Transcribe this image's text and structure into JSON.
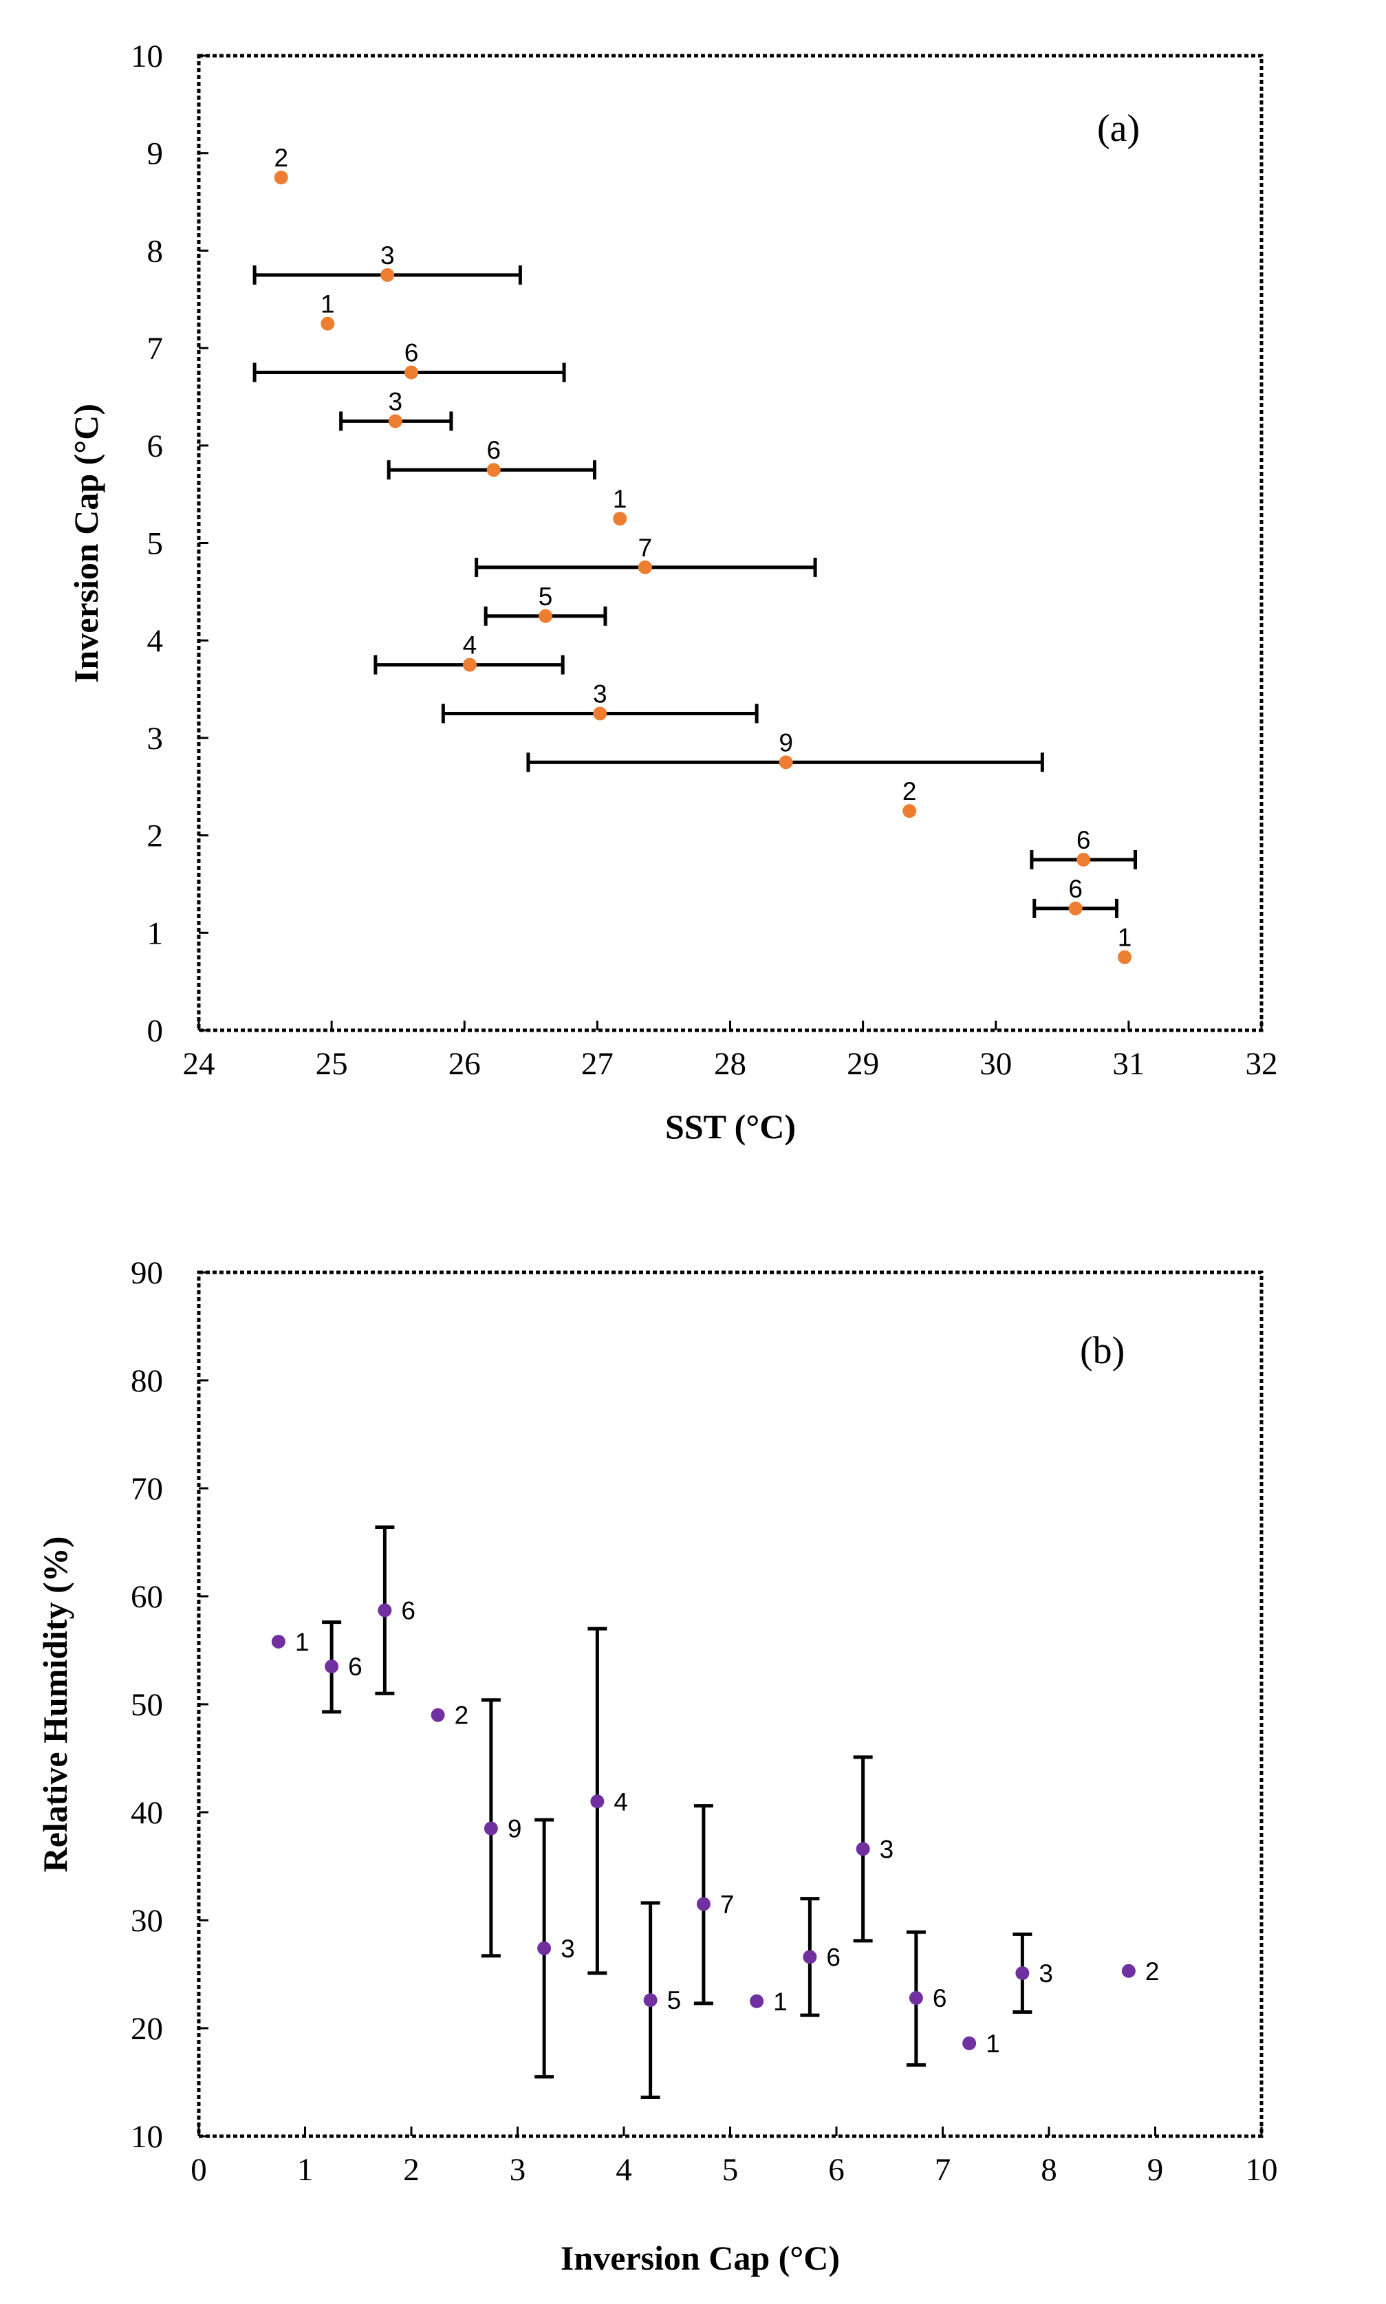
{
  "colors": {
    "panel_a_marker": "#ED7D31",
    "panel_b_marker": "#7030A0",
    "axis": "#000000",
    "error_bar": "#000000"
  },
  "chart_data": [
    {
      "type": "scatter",
      "panel_label": "(a)",
      "xlabel": "SST (°C)",
      "ylabel": "Inversion Cap (°C)",
      "xlim": [
        24,
        32
      ],
      "ylim": [
        0,
        10
      ],
      "xticks": [
        "24",
        "25",
        "26",
        "27",
        "28",
        "29",
        "30",
        "31",
        "32"
      ],
      "yticks": [
        "0",
        "1",
        "2",
        "3",
        "4",
        "5",
        "6",
        "7",
        "8",
        "9",
        "10"
      ],
      "grid": false,
      "error_bars": "horizontal",
      "points": [
        {
          "x": 24.62,
          "y": 8.75,
          "label": "2"
        },
        {
          "x": 25.42,
          "y": 7.75,
          "label": "3",
          "err_low": 24.42,
          "err_high": 26.42
        },
        {
          "x": 24.97,
          "y": 7.25,
          "label": "1"
        },
        {
          "x": 25.6,
          "y": 6.75,
          "label": "6",
          "err_low": 24.42,
          "err_high": 26.75
        },
        {
          "x": 25.48,
          "y": 6.25,
          "label": "3",
          "err_low": 25.07,
          "err_high": 25.9
        },
        {
          "x": 26.22,
          "y": 5.75,
          "label": "6",
          "err_low": 25.43,
          "err_high": 26.98
        },
        {
          "x": 27.17,
          "y": 5.25,
          "label": "1"
        },
        {
          "x": 27.36,
          "y": 4.75,
          "label": "7",
          "err_low": 26.09,
          "err_high": 28.64
        },
        {
          "x": 26.61,
          "y": 4.25,
          "label": "5",
          "err_low": 26.16,
          "err_high": 27.06
        },
        {
          "x": 26.04,
          "y": 3.75,
          "label": "4",
          "err_low": 25.33,
          "err_high": 26.74
        },
        {
          "x": 27.02,
          "y": 3.25,
          "label": "3",
          "err_low": 25.84,
          "err_high": 28.2
        },
        {
          "x": 28.42,
          "y": 2.75,
          "label": "9",
          "err_low": 26.48,
          "err_high": 30.35
        },
        {
          "x": 29.35,
          "y": 2.25,
          "label": "2"
        },
        {
          "x": 30.66,
          "y": 1.75,
          "label": "6",
          "err_low": 30.27,
          "err_high": 31.05
        },
        {
          "x": 30.6,
          "y": 1.25,
          "label": "6",
          "err_low": 30.29,
          "err_high": 30.91
        },
        {
          "x": 30.97,
          "y": 0.75,
          "label": "1"
        }
      ]
    },
    {
      "type": "scatter",
      "panel_label": "(b)",
      "xlabel": "Inversion Cap (°C)",
      "ylabel": "Relative Humidity (%)",
      "xlim": [
        0,
        10
      ],
      "ylim": [
        10,
        90
      ],
      "xticks": [
        "0",
        "1",
        "2",
        "3",
        "4",
        "5",
        "6",
        "7",
        "8",
        "9",
        "10"
      ],
      "yticks": [
        "10",
        "20",
        "30",
        "40",
        "50",
        "60",
        "70",
        "80",
        "90"
      ],
      "grid": false,
      "error_bars": "vertical",
      "points": [
        {
          "x": 0.75,
          "y": 55.8,
          "label": "1"
        },
        {
          "x": 1.25,
          "y": 53.5,
          "label": "6",
          "err_low": 49.3,
          "err_high": 57.6
        },
        {
          "x": 1.75,
          "y": 58.7,
          "label": "6",
          "err_low": 51.0,
          "err_high": 66.4
        },
        {
          "x": 2.25,
          "y": 49.0,
          "label": "2"
        },
        {
          "x": 2.75,
          "y": 38.5,
          "label": "9",
          "err_low": 26.7,
          "err_high": 50.4
        },
        {
          "x": 3.25,
          "y": 27.4,
          "label": "3",
          "err_low": 15.5,
          "err_high": 39.3
        },
        {
          "x": 3.75,
          "y": 41.0,
          "label": "4",
          "err_low": 25.1,
          "err_high": 57.0
        },
        {
          "x": 4.25,
          "y": 22.6,
          "label": "5",
          "err_low": 13.6,
          "err_high": 31.6
        },
        {
          "x": 4.75,
          "y": 31.5,
          "label": "7",
          "err_low": 22.3,
          "err_high": 40.6
        },
        {
          "x": 5.25,
          "y": 22.5,
          "label": "1"
        },
        {
          "x": 5.75,
          "y": 26.6,
          "label": "6",
          "err_low": 21.2,
          "err_high": 32.0
        },
        {
          "x": 6.25,
          "y": 36.6,
          "label": "3",
          "err_low": 28.1,
          "err_high": 45.1
        },
        {
          "x": 6.75,
          "y": 22.8,
          "label": "6",
          "err_low": 16.6,
          "err_high": 28.9
        },
        {
          "x": 7.25,
          "y": 18.6,
          "label": "1"
        },
        {
          "x": 7.75,
          "y": 25.1,
          "label": "3",
          "err_low": 21.5,
          "err_high": 28.7
        },
        {
          "x": 8.75,
          "y": 25.3,
          "label": "2"
        }
      ]
    }
  ]
}
